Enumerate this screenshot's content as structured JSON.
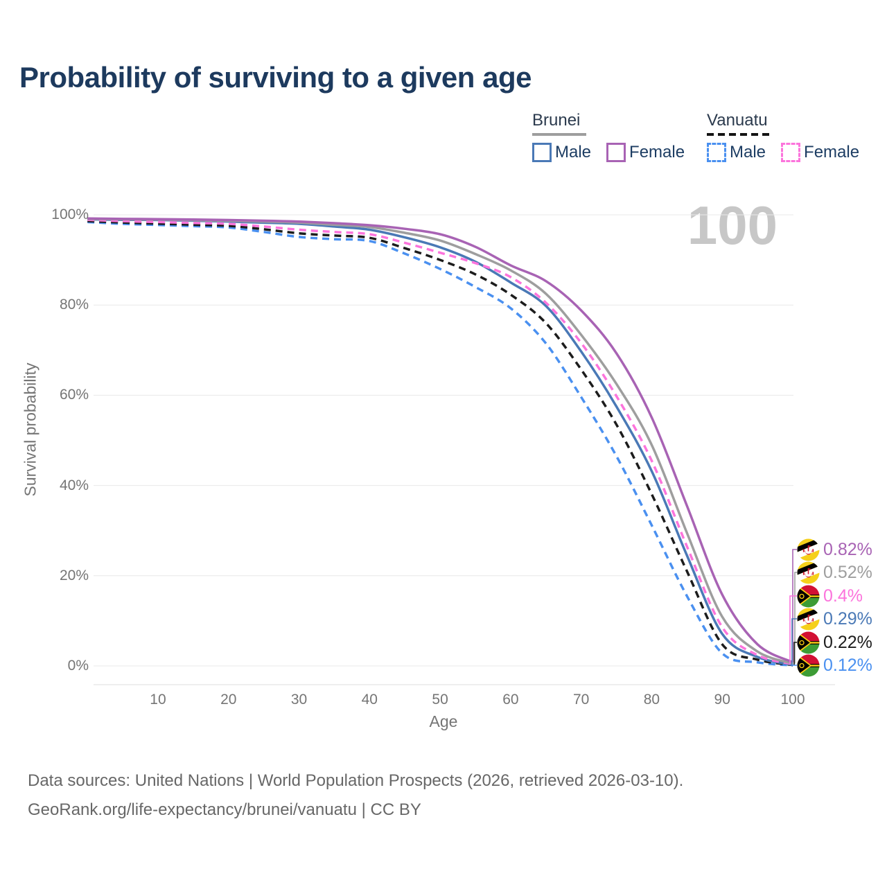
{
  "title": "Probability of surviving to a given age",
  "watermark": "100",
  "legend": {
    "groups": [
      {
        "name": "Brunei",
        "line_style": "solid",
        "underline_color": "#9e9e9e",
        "items": [
          {
            "label": "Male",
            "color": "#4a79b6",
            "dashed": false
          },
          {
            "label": "Female",
            "color": "#a863b4",
            "dashed": false
          }
        ]
      },
      {
        "name": "Vanuatu",
        "line_style": "dashed",
        "underline_color": "#141414",
        "items": [
          {
            "label": "Male",
            "color": "#4a90f0",
            "dashed": true
          },
          {
            "label": "Female",
            "color": "#fc74dc",
            "dashed": true
          }
        ]
      }
    ]
  },
  "axes": {
    "x_title": "Age",
    "y_title": "Survival probability",
    "y_ticks": [
      {
        "label": "100%",
        "pct": 100
      },
      {
        "label": "80%",
        "pct": 80
      },
      {
        "label": "60%",
        "pct": 60
      },
      {
        "label": "40%",
        "pct": 40
      },
      {
        "label": "20%",
        "pct": 20
      },
      {
        "label": "0%",
        "pct": 0
      }
    ],
    "x_ticks": [
      {
        "label": "10",
        "age": 10
      },
      {
        "label": "20",
        "age": 20
      },
      {
        "label": "30",
        "age": 30
      },
      {
        "label": "40",
        "age": 40
      },
      {
        "label": "50",
        "age": 50
      },
      {
        "label": "60",
        "age": 60
      },
      {
        "label": "70",
        "age": 70
      },
      {
        "label": "80",
        "age": 80
      },
      {
        "label": "90",
        "age": 90
      },
      {
        "label": "100",
        "age": 100
      }
    ]
  },
  "chart_data": {
    "type": "line",
    "title": "Probability of surviving to a given age",
    "xlabel": "Age",
    "ylabel": "Survival probability",
    "xlim": [
      0,
      100
    ],
    "ylim": [
      0,
      100
    ],
    "grid": "horizontal",
    "legend_position": "top-right",
    "x": [
      0,
      5,
      10,
      15,
      20,
      25,
      30,
      35,
      40,
      45,
      50,
      55,
      60,
      65,
      70,
      75,
      80,
      85,
      90,
      95,
      100
    ],
    "series": [
      {
        "name": "Brunei Female",
        "country": "Brunei",
        "sex": "Female",
        "color": "#a863b4",
        "dashed": false,
        "flag": "brunei",
        "end_label": "0.82%",
        "values": [
          99.2,
          99.1,
          99.05,
          98.95,
          98.85,
          98.7,
          98.5,
          98.15,
          97.7,
          96.9,
          95.7,
          92.9,
          88.8,
          85.3,
          78.8,
          69.3,
          55.1,
          35.5,
          15.8,
          4.8,
          0.82
        ]
      },
      {
        "name": "Brunei",
        "country": "Brunei",
        "sex": "All",
        "color": "#9e9e9e",
        "dashed": false,
        "flag": "brunei",
        "end_label": "0.52%",
        "values": [
          99.1,
          99.0,
          98.95,
          98.8,
          98.65,
          98.5,
          98.25,
          97.8,
          97.3,
          96.0,
          94.3,
          91.3,
          87.7,
          82.5,
          73.4,
          62.5,
          49.0,
          29.5,
          10.9,
          3.2,
          0.52
        ]
      },
      {
        "name": "Vanuatu Female",
        "country": "Vanuatu",
        "sex": "Female",
        "color": "#fc74dc",
        "dashed": true,
        "flag": "vanuatu",
        "end_label": "0.4%",
        "values": [
          98.9,
          98.6,
          98.4,
          98.2,
          98.0,
          97.4,
          96.7,
          96.2,
          95.7,
          93.8,
          91.6,
          89.3,
          86.2,
          80.5,
          71.6,
          59.8,
          45.5,
          26.5,
          8.6,
          2.4,
          0.4
        ]
      },
      {
        "name": "Brunei Male",
        "country": "Brunei",
        "sex": "Male",
        "color": "#4a79b6",
        "dashed": false,
        "flag": "brunei",
        "end_label": "0.29%",
        "values": [
          99.0,
          98.9,
          98.85,
          98.7,
          98.5,
          98.25,
          98.0,
          97.4,
          96.7,
          95.0,
          92.8,
          89.6,
          85.0,
          79.8,
          69.7,
          57.5,
          43.2,
          24.5,
          7.1,
          2.0,
          0.29
        ]
      },
      {
        "name": "Vanuatu",
        "country": "Vanuatu",
        "sex": "All",
        "color": "#1c1c1c",
        "dashed": true,
        "flag": "vanuatu",
        "end_label": "0.22%",
        "values": [
          98.6,
          98.3,
          98.05,
          97.8,
          97.55,
          96.8,
          95.9,
          95.4,
          94.9,
          92.6,
          90.0,
          86.8,
          82.3,
          76.0,
          65.7,
          53.5,
          38.1,
          21.0,
          4.8,
          1.4,
          0.22
        ]
      },
      {
        "name": "Vanuatu Male",
        "country": "Vanuatu",
        "sex": "Male",
        "color": "#4a90f0",
        "dashed": true,
        "flag": "vanuatu",
        "end_label": "0.12%",
        "values": [
          98.4,
          98.0,
          97.75,
          97.5,
          97.2,
          96.2,
          95.1,
          94.6,
          94.2,
          91.4,
          88.0,
          84.0,
          79.3,
          71.5,
          59.6,
          46.5,
          31.2,
          15.5,
          2.8,
          0.8,
          0.12
        ]
      }
    ]
  },
  "footer": {
    "line1": "Data sources: United Nations | World Population Prospects (2026, retrieved 2026-03-10).",
    "line2": "GeoRank.org/life-expectancy/brunei/vanuatu | CC BY"
  }
}
